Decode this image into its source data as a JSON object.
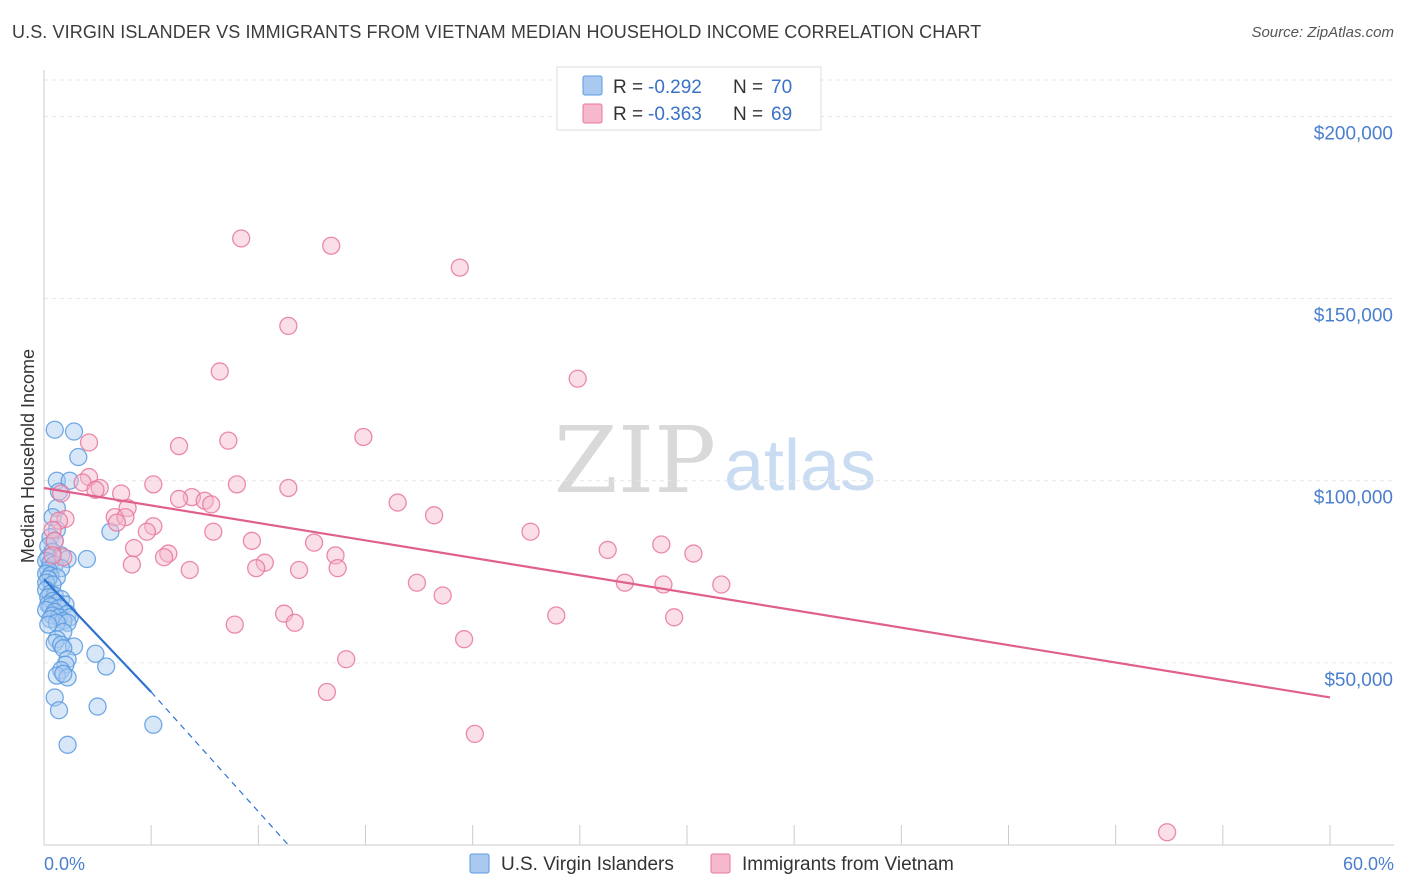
{
  "title": "U.S. VIRGIN ISLANDER VS IMMIGRANTS FROM VIETNAM MEDIAN HOUSEHOLD INCOME CORRELATION CHART",
  "source": "Source: ZipAtlas.com",
  "watermark": {
    "zip": "ZIP",
    "atlas": "atlas"
  },
  "chart_data": {
    "type": "scatter",
    "title": "U.S. VIRGIN ISLANDER VS IMMIGRANTS FROM VIETNAM MEDIAN HOUSEHOLD INCOME CORRELATION CHART",
    "xlabel": "",
    "ylabel": "Median Household Income",
    "xlim": [
      0,
      60
    ],
    "ylim": [
      0,
      210000
    ],
    "x_tick_labels": [
      "0.0%",
      "60.0%"
    ],
    "y_ticks": [
      50000,
      100000,
      150000,
      200000
    ],
    "y_tick_labels": [
      "$50,000",
      "$100,000",
      "$150,000",
      "$200,000"
    ],
    "grid": true,
    "legend": {
      "placement": "top-center",
      "rows": [
        {
          "r_label": "R =",
          "r_value": "-0.292",
          "n_label": "N =",
          "n_value": "70"
        },
        {
          "r_label": "R =",
          "r_value": "-0.363",
          "n_label": "N =",
          "n_value": "69"
        }
      ]
    },
    "series": [
      {
        "name": "U.S. Virgin Islanders",
        "color": "#5b9be0",
        "fill": "#a9c9f0",
        "trend": {
          "x0": 0.0,
          "y0": 73000,
          "x1": 5.0,
          "y1": 42000,
          "dash_to_x": 11.4,
          "dash_to_y": 0
        },
        "points": [
          [
            0.5,
            114000
          ],
          [
            1.4,
            113500
          ],
          [
            1.6,
            106500
          ],
          [
            0.6,
            100000
          ],
          [
            1.2,
            100000
          ],
          [
            0.7,
            97000
          ],
          [
            0.6,
            92500
          ],
          [
            0.4,
            90000
          ],
          [
            0.6,
            86500
          ],
          [
            3.1,
            86000
          ],
          [
            0.3,
            84500
          ],
          [
            0.5,
            83500
          ],
          [
            0.2,
            82000
          ],
          [
            0.4,
            80500
          ],
          [
            0.8,
            79500
          ],
          [
            0.2,
            79000
          ],
          [
            1.1,
            78500
          ],
          [
            2.0,
            78500
          ],
          [
            0.1,
            78000
          ],
          [
            0.3,
            77500
          ],
          [
            0.5,
            77000
          ],
          [
            0.8,
            76000
          ],
          [
            0.2,
            75500
          ],
          [
            0.1,
            74500
          ],
          [
            0.3,
            74000
          ],
          [
            0.6,
            73500
          ],
          [
            0.2,
            73000
          ],
          [
            0.1,
            72000
          ],
          [
            0.4,
            71500
          ],
          [
            0.1,
            70000
          ],
          [
            0.3,
            69000
          ],
          [
            0.5,
            68500
          ],
          [
            0.2,
            68000
          ],
          [
            0.8,
            67500
          ],
          [
            0.4,
            67000
          ],
          [
            0.6,
            66500
          ],
          [
            0.2,
            66000
          ],
          [
            1.0,
            66000
          ],
          [
            0.3,
            65500
          ],
          [
            0.7,
            65000
          ],
          [
            0.1,
            64500
          ],
          [
            0.5,
            64000
          ],
          [
            1.1,
            63500
          ],
          [
            0.4,
            63000
          ],
          [
            0.7,
            62500
          ],
          [
            1.2,
            62500
          ],
          [
            0.3,
            62000
          ],
          [
            0.9,
            61500
          ],
          [
            1.1,
            61000
          ],
          [
            0.6,
            61000
          ],
          [
            0.2,
            60500
          ],
          [
            0.9,
            58500
          ],
          [
            0.6,
            56500
          ],
          [
            0.5,
            55500
          ],
          [
            0.8,
            55000
          ],
          [
            1.4,
            54500
          ],
          [
            0.9,
            54000
          ],
          [
            2.4,
            52500
          ],
          [
            1.1,
            51000
          ],
          [
            1.0,
            49500
          ],
          [
            2.9,
            49000
          ],
          [
            0.8,
            48000
          ],
          [
            0.6,
            46500
          ],
          [
            1.1,
            46000
          ],
          [
            0.5,
            40500
          ],
          [
            2.5,
            38000
          ],
          [
            0.7,
            37000
          ],
          [
            5.1,
            33000
          ],
          [
            1.1,
            27500
          ],
          [
            0.9,
            47000
          ]
        ]
      },
      {
        "name": "Immigrants from Vietnam",
        "color": "#e8779e",
        "fill": "#f5b8cc",
        "trend": {
          "x0": 0.0,
          "y0": 98000,
          "x1": 60.0,
          "y1": 40500
        },
        "points": [
          [
            9.2,
            166500
          ],
          [
            13.4,
            164500
          ],
          [
            19.4,
            158500
          ],
          [
            11.4,
            142500
          ],
          [
            8.2,
            130000
          ],
          [
            24.9,
            128000
          ],
          [
            14.9,
            112000
          ],
          [
            2.1,
            110500
          ],
          [
            8.6,
            111000
          ],
          [
            6.3,
            109500
          ],
          [
            2.1,
            101000
          ],
          [
            5.1,
            99000
          ],
          [
            9.0,
            99000
          ],
          [
            1.8,
            99500
          ],
          [
            11.4,
            98000
          ],
          [
            2.6,
            98000
          ],
          [
            3.6,
            96500
          ],
          [
            0.8,
            96500
          ],
          [
            6.9,
            95500
          ],
          [
            6.3,
            95000
          ],
          [
            7.5,
            94500
          ],
          [
            16.5,
            94000
          ],
          [
            3.9,
            92500
          ],
          [
            3.3,
            90000
          ],
          [
            18.2,
            90500
          ],
          [
            3.8,
            90000
          ],
          [
            1.0,
            89500
          ],
          [
            0.7,
            89000
          ],
          [
            5.1,
            87500
          ],
          [
            3.4,
            88500
          ],
          [
            7.9,
            86000
          ],
          [
            0.4,
            86500
          ],
          [
            4.8,
            86000
          ],
          [
            22.7,
            86000
          ],
          [
            9.7,
            83500
          ],
          [
            12.6,
            83000
          ],
          [
            0.5,
            83500
          ],
          [
            4.2,
            81500
          ],
          [
            26.3,
            81000
          ],
          [
            28.8,
            82500
          ],
          [
            30.3,
            80000
          ],
          [
            13.6,
            79500
          ],
          [
            5.8,
            80000
          ],
          [
            5.6,
            79000
          ],
          [
            0.9,
            79000
          ],
          [
            0.4,
            79500
          ],
          [
            10.3,
            77500
          ],
          [
            4.1,
            77000
          ],
          [
            13.7,
            76000
          ],
          [
            9.9,
            76000
          ],
          [
            11.9,
            75500
          ],
          [
            6.8,
            75500
          ],
          [
            17.4,
            72000
          ],
          [
            27.1,
            72000
          ],
          [
            28.9,
            71500
          ],
          [
            31.6,
            71500
          ],
          [
            18.6,
            68500
          ],
          [
            23.9,
            63000
          ],
          [
            11.2,
            63500
          ],
          [
            29.4,
            62500
          ],
          [
            8.9,
            60500
          ],
          [
            11.7,
            61000
          ],
          [
            19.6,
            56500
          ],
          [
            14.1,
            51000
          ],
          [
            13.2,
            42000
          ],
          [
            20.1,
            30500
          ],
          [
            52.4,
            3500
          ],
          [
            7.8,
            93500
          ],
          [
            2.4,
            97500
          ]
        ]
      }
    ]
  }
}
